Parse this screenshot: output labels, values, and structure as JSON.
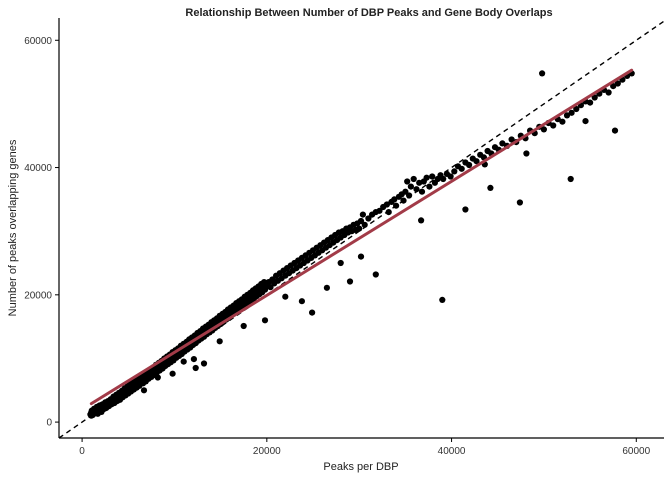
{
  "chart_data": {
    "type": "scatter",
    "title": "Relationship Between Number of DBP Peaks and Gene Body Overlaps",
    "xlabel": "Peaks per DBP",
    "ylabel": "Number of peaks overlapping genes",
    "xlim": [
      -2500,
      63000
    ],
    "ylim": [
      -2500,
      63500
    ],
    "xticks": [
      0,
      20000,
      40000,
      60000
    ],
    "yticks": [
      0,
      20000,
      40000,
      60000
    ],
    "grid": false,
    "legend": "none",
    "reference_line": {
      "slope": 1,
      "intercept": 0,
      "style": "dashed",
      "color": "#000000"
    },
    "fit_line": {
      "x": [
        1000,
        59500
      ],
      "y": [
        2900,
        55300
      ],
      "color": "#a23b48"
    },
    "point_color": "#000000",
    "points": [
      [
        900,
        1200
      ],
      [
        1000,
        1500
      ],
      [
        1050,
        1800
      ],
      [
        1150,
        1100
      ],
      [
        1200,
        1600
      ],
      [
        1300,
        2100
      ],
      [
        1400,
        1400
      ],
      [
        1500,
        1900
      ],
      [
        1600,
        2400
      ],
      [
        1700,
        1300
      ],
      [
        1800,
        2000
      ],
      [
        1900,
        2600
      ],
      [
        2000,
        1700
      ],
      [
        2100,
        2300
      ],
      [
        2200,
        2800
      ],
      [
        2300,
        2000
      ],
      [
        2400,
        2600
      ],
      [
        2500,
        3100
      ],
      [
        2600,
        2200
      ],
      [
        2700,
        2900
      ],
      [
        2800,
        3300
      ],
      [
        2900,
        2500
      ],
      [
        3000,
        3100
      ],
      [
        3100,
        3600
      ],
      [
        3200,
        2800
      ],
      [
        3300,
        3400
      ],
      [
        3400,
        4000
      ],
      [
        3500,
        3000
      ],
      [
        3600,
        3700
      ],
      [
        3700,
        4300
      ],
      [
        3800,
        3300
      ],
      [
        3900,
        4000
      ],
      [
        4000,
        4600
      ],
      [
        4100,
        3500
      ],
      [
        4200,
        4300
      ],
      [
        4300,
        4900
      ],
      [
        4400,
        3900
      ],
      [
        4500,
        4600
      ],
      [
        4600,
        5300
      ],
      [
        4700,
        4200
      ],
      [
        4800,
        5000
      ],
      [
        4900,
        5600
      ],
      [
        5000,
        4500
      ],
      [
        5100,
        5300
      ],
      [
        5200,
        6000
      ],
      [
        5300,
        4800
      ],
      [
        5400,
        5600
      ],
      [
        5500,
        6300
      ],
      [
        5600,
        5100
      ],
      [
        5700,
        6000
      ],
      [
        5800,
        6600
      ],
      [
        5900,
        5400
      ],
      [
        6000,
        6300
      ],
      [
        6100,
        7000
      ],
      [
        6200,
        5700
      ],
      [
        6300,
        6600
      ],
      [
        6500,
        7300
      ],
      [
        6600,
        6100
      ],
      [
        6700,
        7000
      ],
      [
        6800,
        7600
      ],
      [
        6900,
        6400
      ],
      [
        7000,
        7300
      ],
      [
        7100,
        8000
      ],
      [
        7200,
        6800
      ],
      [
        7300,
        7600
      ],
      [
        7400,
        8300
      ],
      [
        7500,
        7100
      ],
      [
        7600,
        8000
      ],
      [
        7700,
        8600
      ],
      [
        7800,
        7400
      ],
      [
        7900,
        8300
      ],
      [
        8000,
        9000
      ],
      [
        8100,
        7800
      ],
      [
        8200,
        8600
      ],
      [
        8300,
        9300
      ],
      [
        8400,
        8100
      ],
      [
        8500,
        9000
      ],
      [
        8600,
        9600
      ],
      [
        8700,
        8400
      ],
      [
        8800,
        9300
      ],
      [
        8900,
        10000
      ],
      [
        9000,
        8800
      ],
      [
        9100,
        9600
      ],
      [
        9200,
        10300
      ],
      [
        9300,
        9100
      ],
      [
        9400,
        9900
      ],
      [
        9500,
        10600
      ],
      [
        9600,
        9400
      ],
      [
        9700,
        10300
      ],
      [
        9800,
        11000
      ],
      [
        9900,
        9700
      ],
      [
        10000,
        10600
      ],
      [
        10100,
        11300
      ],
      [
        10200,
        10100
      ],
      [
        10300,
        10900
      ],
      [
        10400,
        11600
      ],
      [
        10500,
        10400
      ],
      [
        10600,
        11300
      ],
      [
        10700,
        12000
      ],
      [
        10800,
        10700
      ],
      [
        10900,
        11600
      ],
      [
        11000,
        12300
      ],
      [
        11100,
        11100
      ],
      [
        11200,
        11900
      ],
      [
        11300,
        12600
      ],
      [
        11400,
        11400
      ],
      [
        11500,
        12300
      ],
      [
        11600,
        13000
      ],
      [
        11700,
        11700
      ],
      [
        11800,
        12600
      ],
      [
        11900,
        13300
      ],
      [
        12000,
        12100
      ],
      [
        12100,
        12900
      ],
      [
        12200,
        13600
      ],
      [
        12300,
        12400
      ],
      [
        12400,
        13300
      ],
      [
        12500,
        14000
      ],
      [
        12600,
        12800
      ],
      [
        12700,
        13600
      ],
      [
        12800,
        14300
      ],
      [
        12900,
        13100
      ],
      [
        13000,
        14000
      ],
      [
        13100,
        14700
      ],
      [
        13200,
        13400
      ],
      [
        13300,
        14300
      ],
      [
        13400,
        15000
      ],
      [
        13500,
        13800
      ],
      [
        13600,
        14600
      ],
      [
        13700,
        15300
      ],
      [
        13800,
        14100
      ],
      [
        13900,
        15000
      ],
      [
        14000,
        15700
      ],
      [
        14100,
        14400
      ],
      [
        14200,
        15300
      ],
      [
        14300,
        16000
      ],
      [
        14400,
        14800
      ],
      [
        14500,
        15600
      ],
      [
        14600,
        16300
      ],
      [
        14700,
        15100
      ],
      [
        14800,
        16000
      ],
      [
        14900,
        16700
      ],
      [
        15000,
        15400
      ],
      [
        15100,
        16300
      ],
      [
        15200,
        17000
      ],
      [
        15300,
        15800
      ],
      [
        15400,
        16600
      ],
      [
        15500,
        17300
      ],
      [
        15600,
        16100
      ],
      [
        15700,
        17000
      ],
      [
        15800,
        17700
      ],
      [
        15900,
        16400
      ],
      [
        16000,
        17300
      ],
      [
        16100,
        18000
      ],
      [
        16200,
        16800
      ],
      [
        16300,
        17600
      ],
      [
        16400,
        18300
      ],
      [
        16500,
        17100
      ],
      [
        16600,
        18000
      ],
      [
        16700,
        18700
      ],
      [
        16800,
        17400
      ],
      [
        16900,
        18300
      ],
      [
        17000,
        19000
      ],
      [
        17100,
        17800
      ],
      [
        17200,
        18600
      ],
      [
        17300,
        19300
      ],
      [
        17400,
        18100
      ],
      [
        17500,
        19000
      ],
      [
        17600,
        19700
      ],
      [
        17700,
        18400
      ],
      [
        17800,
        19300
      ],
      [
        17900,
        20000
      ],
      [
        18000,
        18800
      ],
      [
        18100,
        19600
      ],
      [
        18200,
        20300
      ],
      [
        18300,
        19100
      ],
      [
        18400,
        20000
      ],
      [
        18500,
        20700
      ],
      [
        18600,
        19400
      ],
      [
        18700,
        20300
      ],
      [
        18800,
        21000
      ],
      [
        18900,
        19800
      ],
      [
        19000,
        20600
      ],
      [
        19100,
        21300
      ],
      [
        19200,
        20100
      ],
      [
        19300,
        21000
      ],
      [
        19400,
        21700
      ],
      [
        19500,
        20400
      ],
      [
        19600,
        21300
      ],
      [
        19700,
        22000
      ],
      [
        19800,
        20800
      ],
      [
        20000,
        21300
      ],
      [
        20200,
        22000
      ],
      [
        20400,
        21200
      ],
      [
        20600,
        22400
      ],
      [
        20800,
        21800
      ],
      [
        21000,
        23000
      ],
      [
        21200,
        22200
      ],
      [
        21400,
        23400
      ],
      [
        21600,
        22600
      ],
      [
        21800,
        23800
      ],
      [
        22000,
        23000
      ],
      [
        22200,
        24200
      ],
      [
        22400,
        23400
      ],
      [
        22600,
        24600
      ],
      [
        22800,
        23800
      ],
      [
        23000,
        25000
      ],
      [
        23200,
        24200
      ],
      [
        23400,
        25400
      ],
      [
        23600,
        24600
      ],
      [
        23800,
        25800
      ],
      [
        24000,
        25000
      ],
      [
        24200,
        26200
      ],
      [
        24400,
        25400
      ],
      [
        24600,
        26600
      ],
      [
        24800,
        25800
      ],
      [
        25000,
        27000
      ],
      [
        25200,
        26200
      ],
      [
        25400,
        27400
      ],
      [
        25600,
        26600
      ],
      [
        25800,
        27800
      ],
      [
        26000,
        27000
      ],
      [
        26200,
        28200
      ],
      [
        26400,
        27400
      ],
      [
        26600,
        28600
      ],
      [
        26800,
        27800
      ],
      [
        27000,
        29000
      ],
      [
        27200,
        28200
      ],
      [
        27400,
        29400
      ],
      [
        27600,
        28600
      ],
      [
        27800,
        29800
      ],
      [
        28000,
        29000
      ],
      [
        28200,
        30000
      ],
      [
        28400,
        29400
      ],
      [
        28600,
        30400
      ],
      [
        28800,
        29800
      ],
      [
        29000,
        30600
      ],
      [
        29200,
        30000
      ],
      [
        29400,
        31000
      ],
      [
        29600,
        30200
      ],
      [
        29800,
        31200
      ],
      [
        30000,
        30400
      ],
      [
        30200,
        31600
      ],
      [
        30400,
        32600
      ],
      [
        30600,
        31000
      ],
      [
        31000,
        32000
      ],
      [
        31400,
        32600
      ],
      [
        31800,
        33000
      ],
      [
        32200,
        33200
      ],
      [
        32600,
        33800
      ],
      [
        33000,
        34200
      ],
      [
        33200,
        33000
      ],
      [
        33500,
        34600
      ],
      [
        33800,
        35000
      ],
      [
        34000,
        34000
      ],
      [
        34300,
        35400
      ],
      [
        34600,
        35800
      ],
      [
        34800,
        34800
      ],
      [
        35000,
        36200
      ],
      [
        35200,
        37800
      ],
      [
        35400,
        35600
      ],
      [
        35600,
        37000
      ],
      [
        35900,
        38200
      ],
      [
        36200,
        36600
      ],
      [
        36500,
        37600
      ],
      [
        36800,
        36200
      ],
      [
        37000,
        37800
      ],
      [
        37300,
        38400
      ],
      [
        37600,
        37000
      ],
      [
        37900,
        38600
      ],
      [
        38200,
        37600
      ],
      [
        38500,
        38200
      ],
      [
        38800,
        38800
      ],
      [
        39100,
        38200
      ],
      [
        39500,
        39000
      ],
      [
        39900,
        38600
      ],
      [
        40300,
        39400
      ],
      [
        40700,
        40200
      ],
      [
        41100,
        39800
      ],
      [
        41500,
        40800
      ],
      [
        41900,
        40400
      ],
      [
        42300,
        41400
      ],
      [
        42700,
        41000
      ],
      [
        43100,
        42000
      ],
      [
        43500,
        41600
      ],
      [
        43900,
        42600
      ],
      [
        44300,
        42200
      ],
      [
        44700,
        43200
      ],
      [
        45100,
        42800
      ],
      [
        45500,
        43800
      ],
      [
        46000,
        43400
      ],
      [
        46500,
        44400
      ],
      [
        47000,
        44000
      ],
      [
        47500,
        45000
      ],
      [
        48000,
        44600
      ],
      [
        48500,
        45800
      ],
      [
        49000,
        45400
      ],
      [
        49500,
        46400
      ],
      [
        50000,
        46000
      ],
      [
        50500,
        47000
      ],
      [
        51000,
        46600
      ],
      [
        51500,
        47600
      ],
      [
        52000,
        47200
      ],
      [
        52500,
        48200
      ],
      [
        53000,
        48600
      ],
      [
        53500,
        49200
      ],
      [
        54000,
        49800
      ],
      [
        54500,
        50400
      ],
      [
        55000,
        50200
      ],
      [
        55500,
        51000
      ],
      [
        56000,
        51600
      ],
      [
        56500,
        52200
      ],
      [
        57000,
        51800
      ],
      [
        57500,
        52800
      ],
      [
        58000,
        53200
      ],
      [
        58500,
        53800
      ],
      [
        59000,
        54400
      ],
      [
        59500,
        54800
      ],
      [
        49800,
        54800
      ],
      [
        52900,
        38200
      ],
      [
        57700,
        45800
      ],
      [
        47400,
        34500
      ],
      [
        44200,
        36800
      ],
      [
        41500,
        33400
      ],
      [
        39000,
        19200
      ],
      [
        30200,
        26000
      ],
      [
        29000,
        22100
      ],
      [
        28000,
        25000
      ],
      [
        24900,
        17200
      ],
      [
        22000,
        19700
      ],
      [
        19800,
        16000
      ],
      [
        13200,
        9200
      ],
      [
        12300,
        8500
      ],
      [
        12100,
        9900
      ],
      [
        9800,
        7600
      ],
      [
        8200,
        7000
      ],
      [
        6700,
        5000
      ],
      [
        4800,
        4500
      ],
      [
        3300,
        3100
      ],
      [
        2100,
        1600
      ],
      [
        1000,
        1000
      ],
      [
        23800,
        19000
      ],
      [
        31800,
        23200
      ],
      [
        36700,
        31700
      ],
      [
        43600,
        40500
      ],
      [
        48100,
        42200
      ],
      [
        54500,
        47300
      ],
      [
        26500,
        21100
      ],
      [
        14900,
        12700
      ],
      [
        17500,
        15100
      ],
      [
        11000,
        9500
      ]
    ]
  }
}
